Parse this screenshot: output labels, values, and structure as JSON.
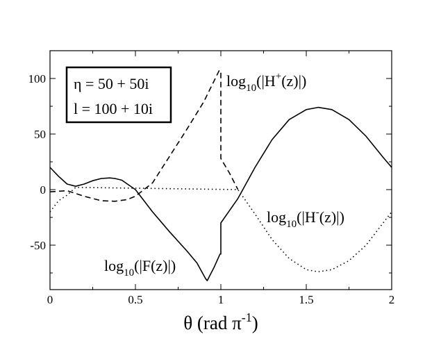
{
  "chart_data": {
    "type": "line",
    "xlim": [
      0,
      2
    ],
    "ylim": [
      -90,
      125
    ],
    "x_ticks": [
      0,
      0.5,
      1,
      1.5,
      2
    ],
    "x_tick_labels": [
      "0",
      "0.5",
      "1",
      "1.5",
      "2"
    ],
    "y_ticks": [
      -50,
      0,
      50,
      100
    ],
    "y_tick_labels": [
      "-50",
      "0",
      "50",
      "100"
    ],
    "xlabel": {
      "main": "θ (rad π",
      "sup": "-1",
      "tail": ")"
    },
    "legend_box": {
      "line1": "η = 50 + 50i",
      "line2": "l = 100 + 10i"
    },
    "series": [
      {
        "name": "log10(|F(z)|)",
        "style": "solid",
        "x": [
          0,
          0.05,
          0.1,
          0.15,
          0.2,
          0.25,
          0.3,
          0.35,
          0.38,
          0.42,
          0.5,
          0.6,
          0.7,
          0.8,
          0.86,
          0.91,
          0.92,
          0.96,
          0.995,
          1.0,
          1.0,
          1.1,
          1.2,
          1.3,
          1.4,
          1.5,
          1.57,
          1.65,
          1.75,
          1.85,
          1.95,
          2.0
        ],
        "y": [
          20,
          12,
          5,
          3,
          5,
          8,
          10,
          10.5,
          10,
          8.5,
          0,
          -20,
          -38,
          -55,
          -66,
          -80,
          -82,
          -70,
          -58,
          -58,
          -30,
          -8,
          20,
          45,
          63,
          72,
          74,
          72,
          63,
          48,
          29,
          20
        ]
      },
      {
        "name": "log10(|H+(z)|)",
        "style": "dashed",
        "x": [
          0,
          0.1,
          0.2,
          0.3,
          0.38,
          0.45,
          0.5,
          0.6,
          0.7,
          0.8,
          0.9,
          0.99,
          1.0,
          1.0,
          1.05,
          1.1
        ],
        "y": [
          -2,
          -1,
          -6,
          -10,
          -10.5,
          -9,
          -6,
          6,
          30,
          54,
          79,
          107,
          107,
          28,
          15,
          0
        ]
      },
      {
        "name": "log10(|H-(z)|)",
        "style": "dotted",
        "x": [
          0,
          0.05,
          0.1,
          0.15,
          1.1,
          1.2,
          1.3,
          1.4,
          1.5,
          1.57,
          1.65,
          1.75,
          1.85,
          1.95,
          2.0
        ],
        "y": [
          -20,
          -10,
          -5,
          2,
          0,
          -22,
          -45,
          -62,
          -72,
          -74,
          -72,
          -64,
          -50,
          -30,
          -20
        ]
      }
    ],
    "annotations": {
      "H_plus": {
        "base": "log",
        "sub": "10",
        "pre": "(|H",
        "sup": "+",
        "post": "(z)|)"
      },
      "H_minus": {
        "base": "log",
        "sub": "10",
        "pre": "(|H",
        "sup": "-",
        "post": "(z)|)"
      },
      "F": {
        "base": "log",
        "sub": "10",
        "text": "(|F(z)|)"
      }
    }
  }
}
